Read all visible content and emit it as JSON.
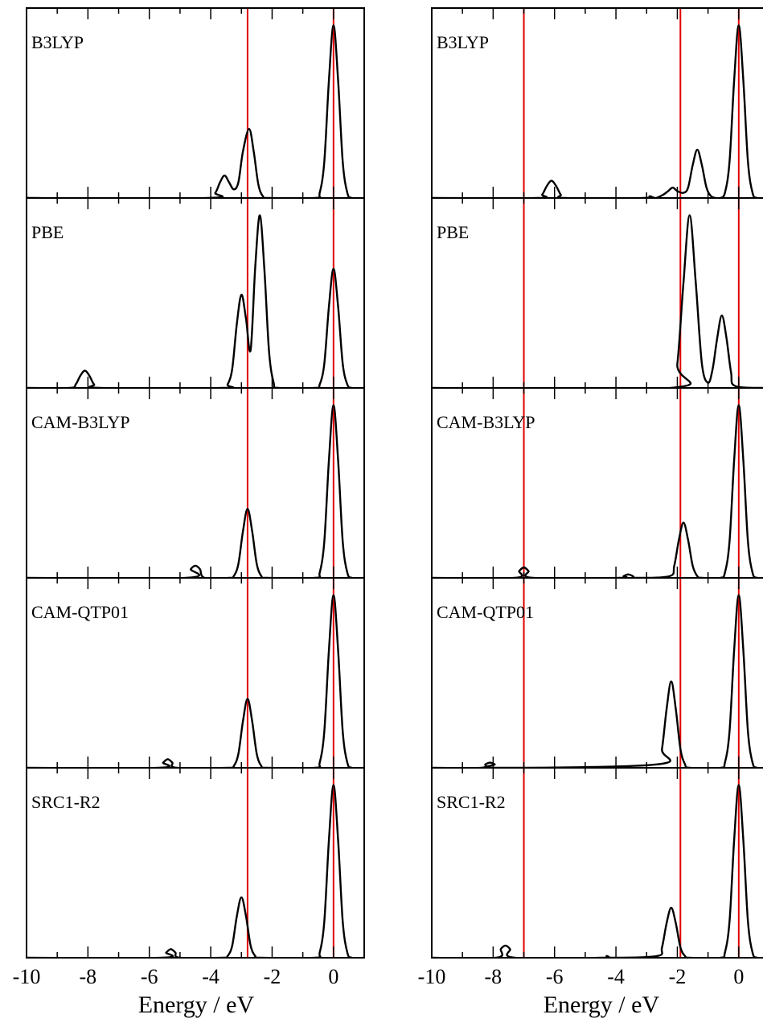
{
  "chart_data": [
    {
      "type": "line",
      "title": "B3LYP",
      "color": "#000000",
      "xlim": [
        -10,
        1
      ],
      "ylim": [
        0,
        1.1
      ],
      "xticks": [
        -10,
        -8,
        -6,
        -4,
        -2,
        0
      ],
      "xminorticks": [
        -9,
        -7,
        -5,
        -3,
        -1
      ],
      "vlines": [
        -2.8,
        0
      ],
      "vline_color": "#e00000",
      "x": [
        -10,
        -9.7,
        -4.1,
        -3.85,
        -3.7,
        -3.55,
        -3.4,
        -3.25,
        -3.1,
        -2.95,
        -2.75,
        -2.6,
        -2.45,
        -2.3,
        -2.1,
        -0.6,
        -0.45,
        -0.3,
        -0.15,
        0,
        0.15,
        0.3,
        0.45,
        0.6,
        1
      ],
      "values": [
        0.02,
        0,
        0,
        0.03,
        0.09,
        0.13,
        0.09,
        0.05,
        0.09,
        0.27,
        0.4,
        0.27,
        0.08,
        0.01,
        0,
        0,
        0.03,
        0.21,
        0.68,
        1,
        0.68,
        0.21,
        0.03,
        0,
        0
      ]
    },
    {
      "type": "line",
      "title": "PBE",
      "color": "#000000",
      "xlim": [
        -10,
        1
      ],
      "ylim": [
        0,
        1.1
      ],
      "xticks": [
        -10,
        -8,
        -6,
        -4,
        -2,
        0
      ],
      "xminorticks": [
        -9,
        -7,
        -5,
        -3,
        -1
      ],
      "vlines": [
        -2.8,
        0
      ],
      "vline_color": "#e00000",
      "x": [
        -10,
        -8.6,
        -8.4,
        -8.25,
        -8.1,
        -7.95,
        -7.8,
        -7.6,
        -3.6,
        -3.45,
        -3.3,
        -3.15,
        -3.0,
        -2.85,
        -2.7,
        -2.55,
        -2.4,
        -2.25,
        -2.1,
        -1.95,
        -1.8,
        -0.6,
        -0.45,
        -0.3,
        -0.15,
        0,
        0.15,
        0.3,
        0.45,
        0.6,
        1
      ],
      "values": [
        0,
        0,
        0.02,
        0.07,
        0.1,
        0.07,
        0.02,
        0,
        0,
        0.02,
        0.11,
        0.37,
        0.54,
        0.4,
        0.22,
        0.7,
        1,
        0.68,
        0.21,
        0.03,
        0,
        0,
        0.02,
        0.14,
        0.47,
        0.69,
        0.47,
        0.14,
        0.02,
        0,
        0
      ]
    },
    {
      "type": "line",
      "title": "CAM-B3LYP",
      "color": "#000000",
      "xlim": [
        -10,
        1
      ],
      "ylim": [
        0,
        1.1
      ],
      "xticks": [
        -10,
        -8,
        -6,
        -4,
        -2,
        0
      ],
      "xminorticks": [
        -9,
        -7,
        -5,
        -3,
        -1
      ],
      "vlines": [
        -2.8,
        0
      ],
      "vline_color": "#e00000",
      "x": [
        -10,
        -4.8,
        -4.65,
        -4.5,
        -4.35,
        -4.2,
        -3.4,
        -3.25,
        -3.1,
        -2.95,
        -2.8,
        -2.65,
        -2.5,
        -2.35,
        -2.2,
        -0.6,
        -0.45,
        -0.3,
        -0.15,
        0,
        0.15,
        0.3,
        0.45,
        0.6,
        1
      ],
      "values": [
        0,
        0,
        0.05,
        0.07,
        0.05,
        0,
        0,
        0.01,
        0.08,
        0.27,
        0.4,
        0.27,
        0.08,
        0.01,
        0,
        0,
        0.03,
        0.21,
        0.68,
        1,
        0.68,
        0.21,
        0.03,
        0,
        0
      ]
    },
    {
      "type": "line",
      "title": "CAM-QTP01",
      "color": "#000000",
      "xlim": [
        -10,
        1
      ],
      "ylim": [
        0,
        1.1
      ],
      "xticks": [
        -10,
        -8,
        -6,
        -4,
        -2,
        0
      ],
      "xminorticks": [
        -9,
        -7,
        -5,
        -3,
        -1
      ],
      "vlines": [
        -2.8,
        0
      ],
      "vline_color": "#e00000",
      "x": [
        -10,
        -5.7,
        -5.55,
        -5.4,
        -5.25,
        -5.1,
        -3.4,
        -3.25,
        -3.1,
        -2.95,
        -2.8,
        -2.65,
        -2.5,
        -2.35,
        -2.2,
        -0.6,
        -0.45,
        -0.3,
        -0.15,
        0,
        0.15,
        0.3,
        0.45,
        0.6,
        1
      ],
      "values": [
        0,
        0,
        0.03,
        0.05,
        0.03,
        0,
        0,
        0.01,
        0.08,
        0.27,
        0.4,
        0.27,
        0.08,
        0.01,
        0,
        0,
        0.03,
        0.21,
        0.68,
        1,
        0.68,
        0.21,
        0.03,
        0,
        0
      ]
    },
    {
      "type": "line",
      "title": "SRC1-R2",
      "color": "#000000",
      "xlim": [
        -10,
        1
      ],
      "ylim": [
        0,
        1.1
      ],
      "xticks": [
        -10,
        -8,
        -6,
        -4,
        -2,
        0
      ],
      "xminorticks": [
        -9,
        -7,
        -5,
        -3,
        -1
      ],
      "vlines": [
        -2.8,
        0
      ],
      "vline_color": "#e00000",
      "xlabel": "Energy / eV",
      "x": [
        -10,
        -5.6,
        -5.45,
        -5.3,
        -5.15,
        -5.0,
        -3.6,
        -3.45,
        -3.3,
        -3.15,
        -3.0,
        -2.85,
        -2.7,
        -2.55,
        -2.4,
        -0.6,
        -0.45,
        -0.3,
        -0.15,
        0,
        0.15,
        0.3,
        0.45,
        0.6,
        1
      ],
      "values": [
        0,
        0,
        0.03,
        0.05,
        0.03,
        0,
        0,
        0.01,
        0.07,
        0.24,
        0.35,
        0.24,
        0.07,
        0.01,
        0,
        0,
        0.03,
        0.21,
        0.68,
        1,
        0.68,
        0.21,
        0.03,
        0,
        0
      ]
    },
    {
      "type": "line",
      "title": "B3LYP",
      "color": "#000000",
      "xlim": [
        -10,
        1
      ],
      "ylim": [
        0,
        1.1
      ],
      "xticks": [
        -10,
        -8,
        -6,
        -4,
        -2,
        0
      ],
      "xminorticks": [
        -9,
        -7,
        -5,
        -3,
        -1
      ],
      "vlines": [
        -7,
        -1.9,
        0
      ],
      "vline_color": "#e00000",
      "x": [
        -10,
        -6.55,
        -6.4,
        -6.25,
        -6.1,
        -5.95,
        -5.8,
        -5.65,
        -3.1,
        -2.9,
        -2.7,
        -2.45,
        -2.3,
        -2.15,
        -2.0,
        -1.8,
        -1.65,
        -1.5,
        -1.35,
        -1.2,
        -1.05,
        -0.9,
        -0.75,
        -0.6,
        -0.45,
        -0.3,
        -0.15,
        0,
        0.15,
        0.3,
        0.45,
        0.6,
        1
      ],
      "values": [
        0,
        0,
        0.02,
        0.07,
        0.1,
        0.07,
        0.02,
        0,
        0,
        0.01,
        0,
        0.02,
        0.04,
        0.06,
        0.04,
        0.03,
        0.06,
        0.19,
        0.28,
        0.19,
        0.06,
        0.01,
        0,
        0,
        0.03,
        0.21,
        0.68,
        1,
        0.68,
        0.21,
        0.03,
        0,
        0
      ]
    },
    {
      "type": "line",
      "title": "PBE",
      "color": "#000000",
      "xlim": [
        -10,
        1
      ],
      "ylim": [
        0,
        1.1
      ],
      "xticks": [
        -10,
        -8,
        -6,
        -4,
        -2,
        0
      ],
      "xminorticks": [
        -9,
        -7,
        -5,
        -3,
        -1
      ],
      "vlines": [
        -7,
        -1.9,
        0
      ],
      "vline_color": "#e00000",
      "x": [
        -10,
        -2.2,
        -2.0,
        -1.8,
        -1.6,
        -1.4,
        -1.2,
        -1.0,
        -0.85,
        -0.7,
        -0.55,
        -0.4,
        -0.25,
        -0.1,
        1
      ],
      "values": [
        0,
        0,
        0.14,
        0.61,
        1,
        0.61,
        0.14,
        0.03,
        0.11,
        0.29,
        0.42,
        0.29,
        0.09,
        0.01,
        0
      ]
    },
    {
      "type": "line",
      "title": "CAM-B3LYP",
      "color": "#000000",
      "xlim": [
        -10,
        1
      ],
      "ylim": [
        0,
        1.1
      ],
      "xticks": [
        -10,
        -8,
        -6,
        -4,
        -2,
        0
      ],
      "xminorticks": [
        -9,
        -7,
        -5,
        -3,
        -1
      ],
      "vlines": [
        -7,
        -1.9,
        0
      ],
      "vline_color": "#e00000",
      "x": [
        -10,
        -7.3,
        -7.15,
        -7.0,
        -6.85,
        -6.7,
        -3.9,
        -3.75,
        -3.6,
        -3.45,
        -3.3,
        -2.25,
        -2.1,
        -1.95,
        -1.8,
        -1.65,
        -1.5,
        -1.35,
        -1.2,
        -0.6,
        -0.45,
        -0.3,
        -0.15,
        0,
        0.15,
        0.3,
        0.45,
        0.6,
        1
      ],
      "values": [
        0,
        0,
        0.04,
        0.06,
        0.04,
        0,
        0,
        0.01,
        0.02,
        0.01,
        0,
        0.01,
        0.07,
        0.22,
        0.32,
        0.22,
        0.07,
        0.01,
        0,
        0,
        0.03,
        0.21,
        0.68,
        1,
        0.68,
        0.21,
        0.03,
        0,
        0
      ]
    },
    {
      "type": "line",
      "title": "CAM-QTP01",
      "color": "#000000",
      "xlim": [
        -10,
        1
      ],
      "ylim": [
        0,
        1.1
      ],
      "xticks": [
        -10,
        -8,
        -6,
        -4,
        -2,
        0
      ],
      "xminorticks": [
        -9,
        -7,
        -5,
        -3,
        -1
      ],
      "vlines": [
        -7,
        -1.9,
        0
      ],
      "vline_color": "#e00000",
      "x": [
        -10,
        -8.4,
        -8.25,
        -8.1,
        -7.95,
        -7.8,
        -2.65,
        -2.5,
        -2.35,
        -2.2,
        -2.05,
        -1.9,
        -1.75,
        -1.6,
        -0.6,
        -0.45,
        -0.3,
        -0.15,
        0,
        0.15,
        0.3,
        0.45,
        0.6,
        1
      ],
      "values": [
        0,
        0,
        0.02,
        0.03,
        0.02,
        0,
        0.02,
        0.11,
        0.34,
        0.5,
        0.34,
        0.11,
        0.02,
        0,
        0,
        0.03,
        0.21,
        0.68,
        1,
        0.68,
        0.21,
        0.03,
        0,
        0
      ]
    },
    {
      "type": "line",
      "title": "SRC1-R2",
      "color": "#000000",
      "xlim": [
        -10,
        1
      ],
      "ylim": [
        0,
        1.1
      ],
      "xticks": [
        -10,
        -8,
        -6,
        -4,
        -2,
        0
      ],
      "xminorticks": [
        -9,
        -7,
        -5,
        -3,
        -1
      ],
      "vlines": [
        -7,
        -1.9,
        0
      ],
      "vline_color": "#e00000",
      "xlabel": "Energy / eV",
      "x": [
        -10,
        -7.9,
        -7.75,
        -7.6,
        -7.45,
        -7.3,
        -4.5,
        -4.3,
        -4.1,
        -2.65,
        -2.5,
        -2.35,
        -2.2,
        -2.05,
        -1.9,
        -1.75,
        -1.6,
        -0.6,
        -0.45,
        -0.3,
        -0.15,
        0,
        0.15,
        0.3,
        0.45,
        0.6,
        1
      ],
      "values": [
        0,
        0,
        0.05,
        0.07,
        0.05,
        0,
        0,
        0.01,
        0,
        0.01,
        0.06,
        0.2,
        0.29,
        0.2,
        0.06,
        0.01,
        0,
        0,
        0.03,
        0.21,
        0.68,
        1,
        0.68,
        0.21,
        0.03,
        0,
        0
      ]
    }
  ]
}
